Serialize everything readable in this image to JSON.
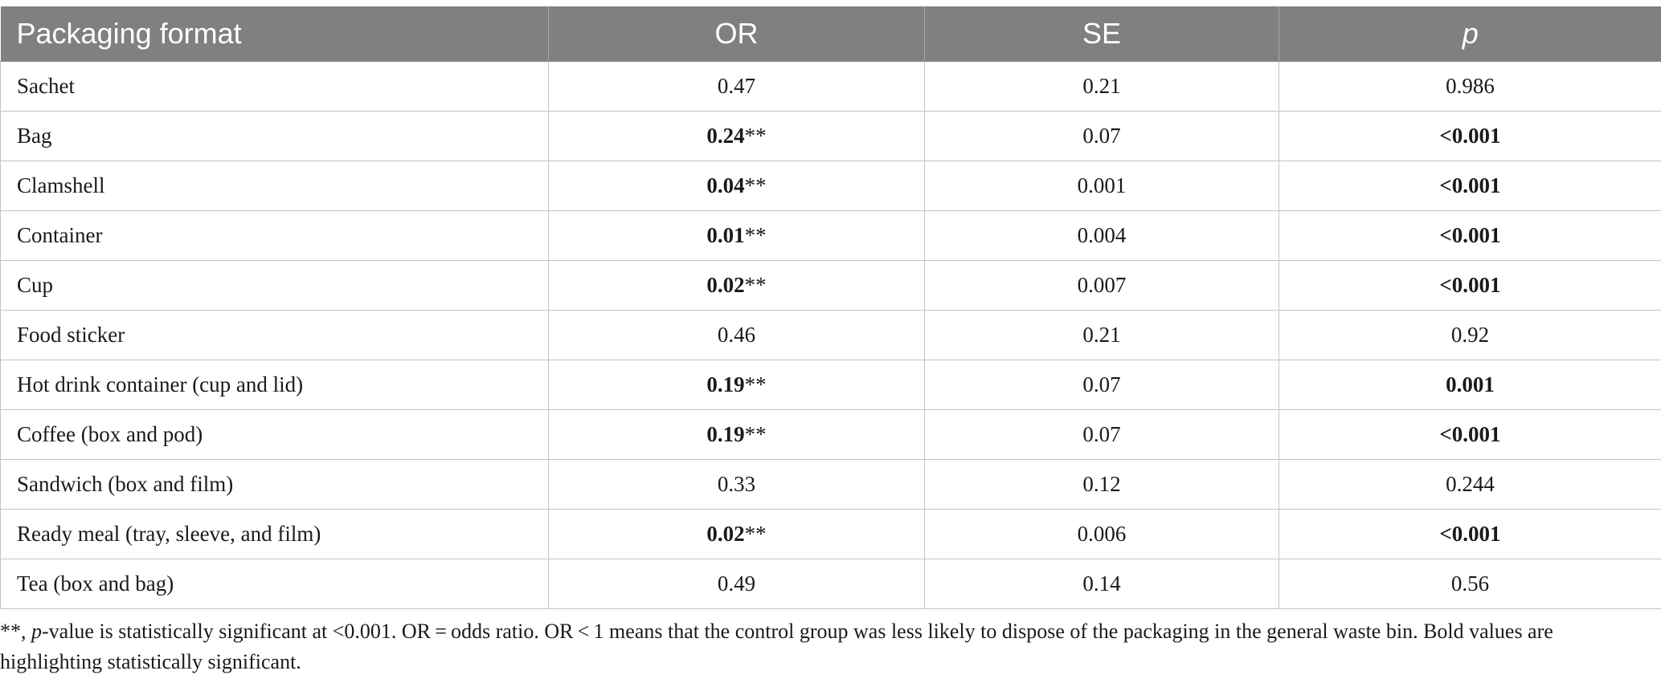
{
  "table": {
    "headers": [
      "Packaging format",
      "OR",
      "SE",
      "p"
    ],
    "rows": [
      {
        "format": "Sachet",
        "or_value": "0.47",
        "or_mark": "",
        "or_bold": false,
        "se": "0.21",
        "p": "0.986",
        "p_bold": false
      },
      {
        "format": "Bag",
        "or_value": "0.24",
        "or_mark": "**",
        "or_bold": true,
        "se": "0.07",
        "p": "<0.001",
        "p_bold": true
      },
      {
        "format": "Clamshell",
        "or_value": "0.04",
        "or_mark": "**",
        "or_bold": true,
        "se": "0.001",
        "p": "<0.001",
        "p_bold": true
      },
      {
        "format": "Container",
        "or_value": "0.01",
        "or_mark": "**",
        "or_bold": true,
        "se": "0.004",
        "p": "<0.001",
        "p_bold": true
      },
      {
        "format": "Cup",
        "or_value": "0.02",
        "or_mark": "**",
        "or_bold": true,
        "se": "0.007",
        "p": "<0.001",
        "p_bold": true
      },
      {
        "format": "Food sticker",
        "or_value": "0.46",
        "or_mark": "",
        "or_bold": false,
        "se": "0.21",
        "p": "0.92",
        "p_bold": false
      },
      {
        "format": "Hot drink container (cup and lid)",
        "or_value": "0.19",
        "or_mark": "**",
        "or_bold": true,
        "se": "0.07",
        "p": "0.001",
        "p_bold": true
      },
      {
        "format": "Coffee (box and pod)",
        "or_value": "0.19",
        "or_mark": "**",
        "or_bold": true,
        "se": "0.07",
        "p": "<0.001",
        "p_bold": true
      },
      {
        "format": "Sandwich (box and film)",
        "or_value": "0.33",
        "or_mark": "",
        "or_bold": false,
        "se": "0.12",
        "p": "0.244",
        "p_bold": false
      },
      {
        "format": "Ready meal (tray, sleeve, and film)",
        "or_value": "0.02",
        "or_mark": "**",
        "or_bold": true,
        "se": "0.006",
        "p": "<0.001",
        "p_bold": true
      },
      {
        "format": "Tea (box and bag)",
        "or_value": "0.49",
        "or_mark": "",
        "or_bold": false,
        "se": "0.14",
        "p": "0.56",
        "p_bold": false
      }
    ]
  },
  "footnote": {
    "part1": "**, ",
    "part2_italic": "p",
    "part3": "-value is statistically significant at <0.001. OR = odds ratio. OR < 1 means that the control group was less likely to dispose of the packaging in the general waste bin. Bold values are highlighting statistically significant."
  }
}
